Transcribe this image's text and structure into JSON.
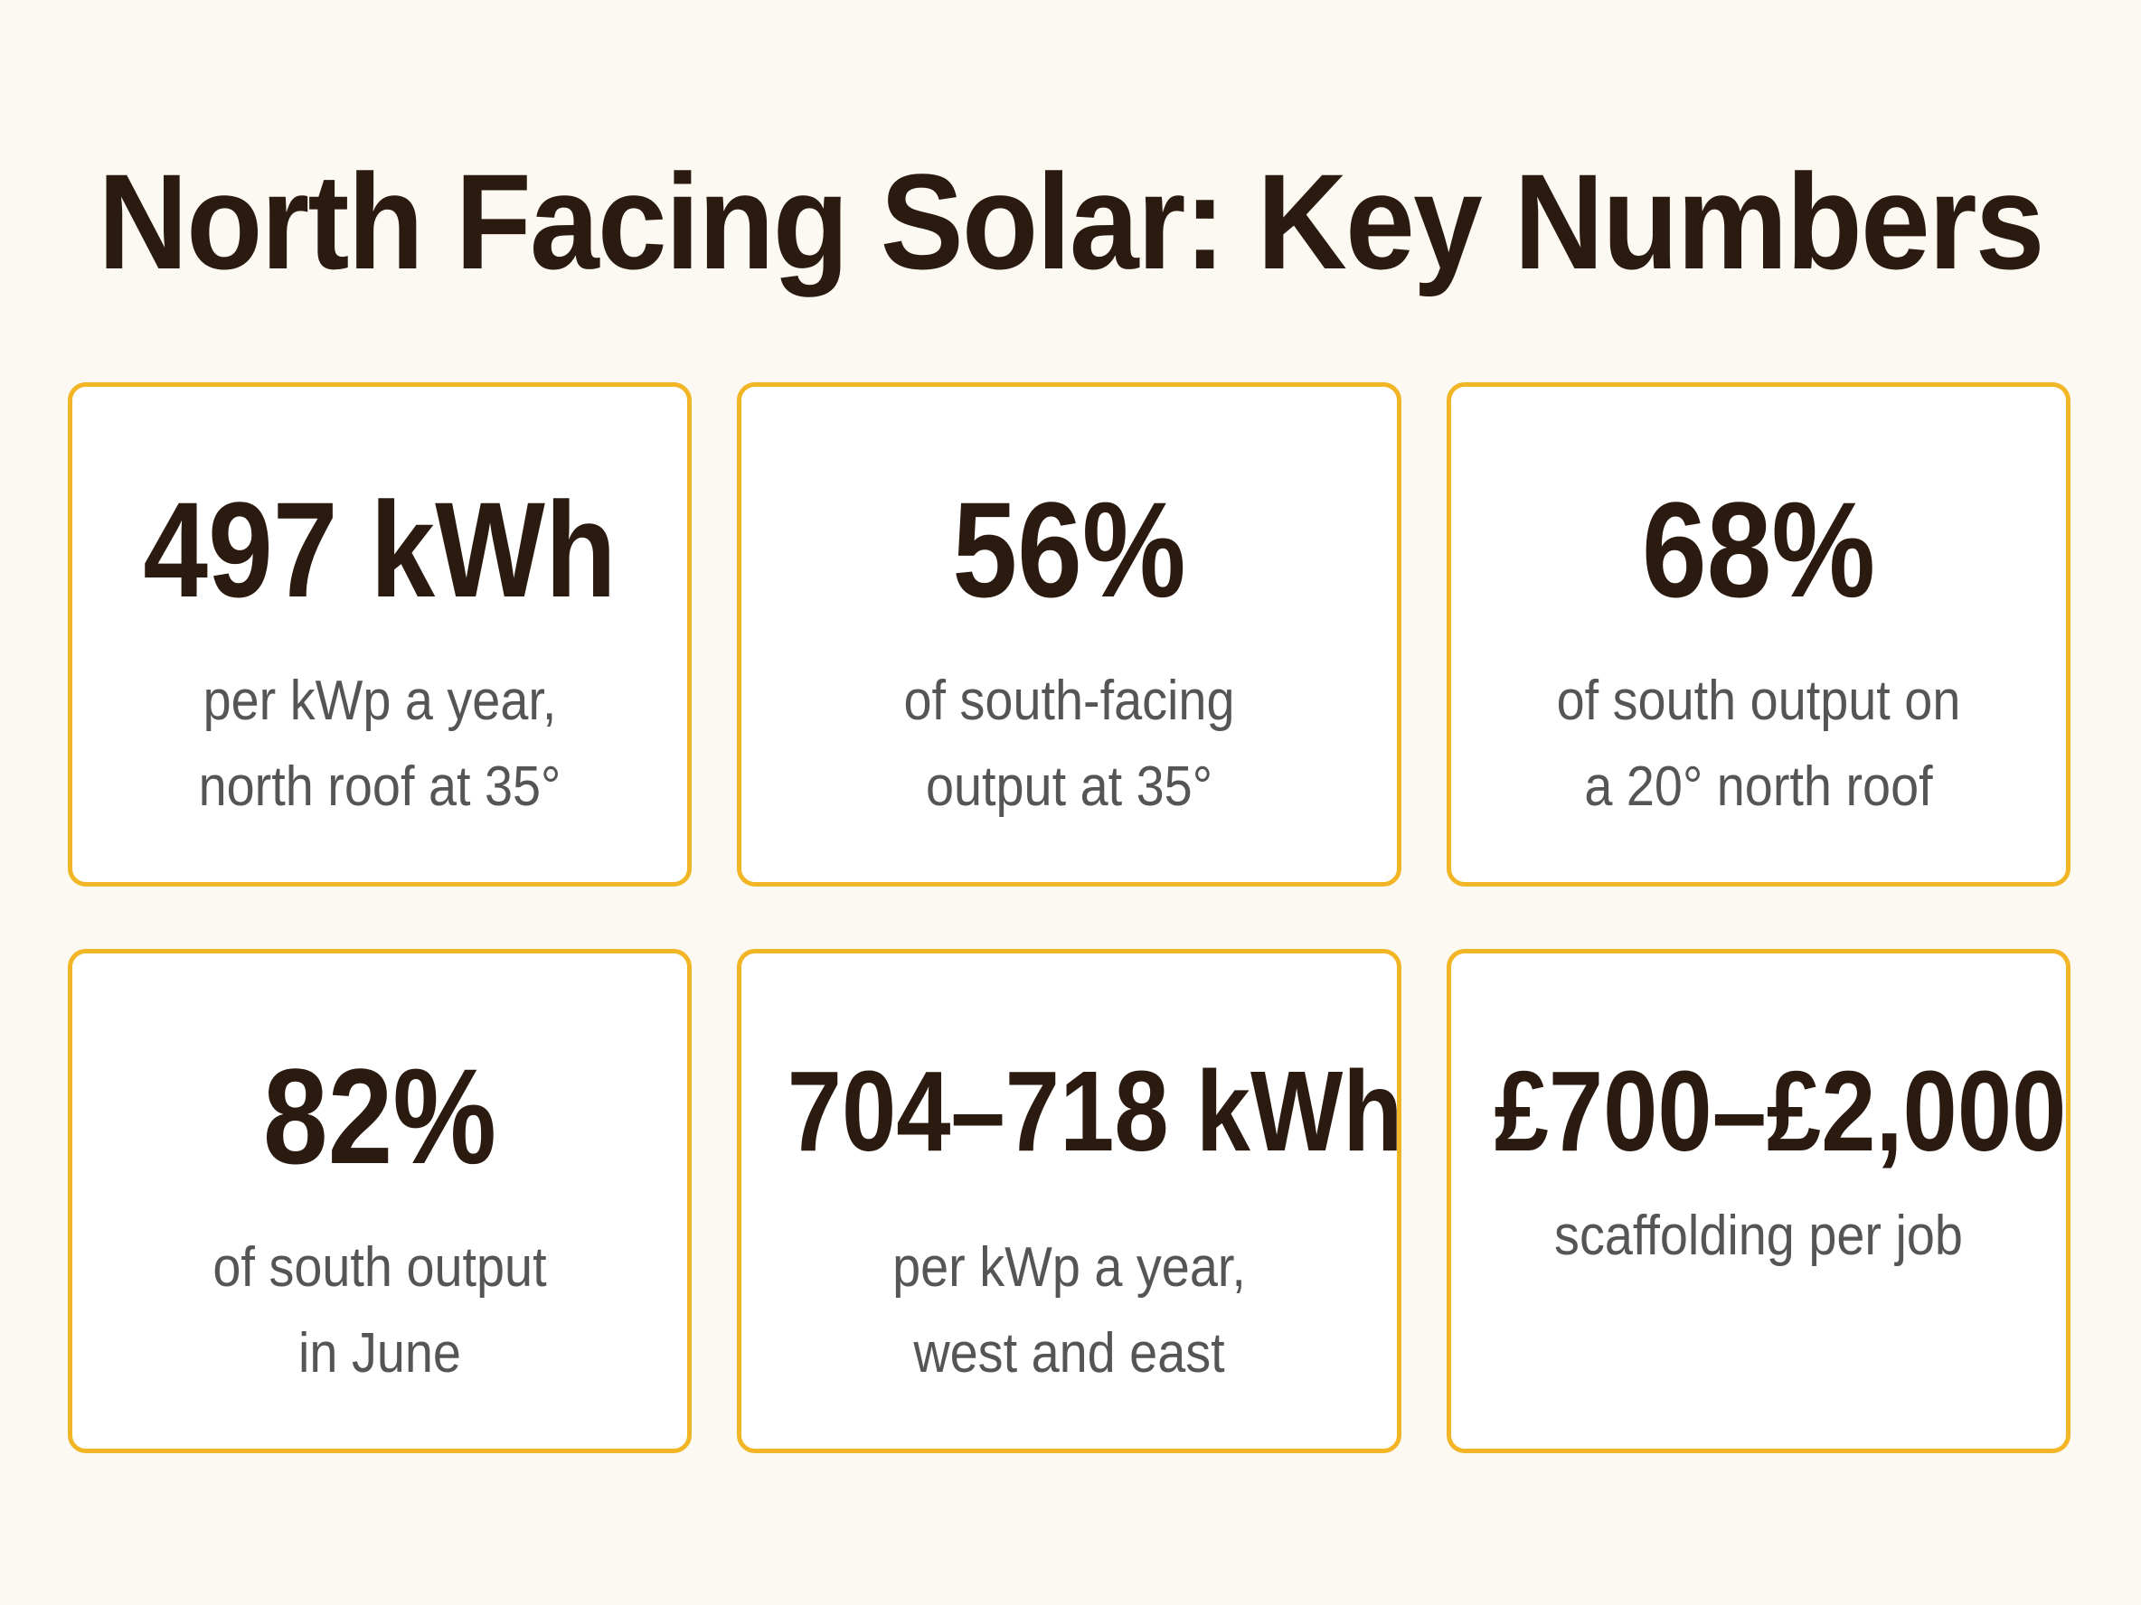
{
  "title": "North Facing Solar: Key Numbers",
  "colors": {
    "background": "#fcf9f2",
    "card_border": "#f1b526",
    "value_text": "#2a1a10",
    "label_text": "#555555"
  },
  "cards": [
    {
      "value": "497 kWh",
      "label_lines": [
        "per kWp a year,",
        "north roof at 35°"
      ]
    },
    {
      "value": "56%",
      "label_lines": [
        "of south-facing",
        "output at 35°"
      ]
    },
    {
      "value": "68%",
      "label_lines": [
        "of south output on",
        "a 20° north roof"
      ]
    },
    {
      "value": "82%",
      "label_lines": [
        "of south output",
        "in June"
      ]
    },
    {
      "value": "704–718 kWh",
      "label_lines": [
        "per kWp a year,",
        "west and east"
      ]
    },
    {
      "value": "£700–£2,000",
      "label_lines": [
        "scaffolding per job"
      ]
    }
  ]
}
